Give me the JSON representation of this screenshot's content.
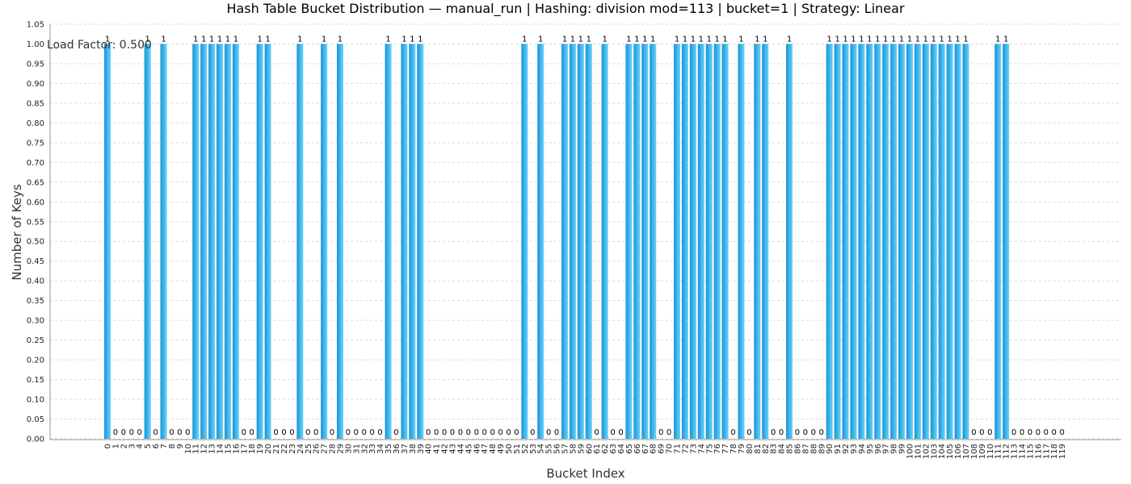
{
  "chart_data": {
    "type": "bar",
    "title": "Hash Table Bucket Distribution — manual_run | Hashing: division mod=113 | bucket=1 | Strategy: Linear",
    "xlabel": "Bucket Index",
    "ylabel": "Number of Keys",
    "annotation": "Load Factor: 0.500",
    "ylim": [
      0,
      1.05
    ],
    "yticks": [
      "0.00",
      "0.05",
      "0.10",
      "0.15",
      "0.20",
      "0.25",
      "0.30",
      "0.35",
      "0.40",
      "0.45",
      "0.50",
      "0.55",
      "0.60",
      "0.65",
      "0.70",
      "0.75",
      "0.80",
      "0.85",
      "0.90",
      "0.95",
      "1.00",
      "1.05"
    ],
    "grid": true,
    "categories": [
      "0",
      "1",
      "2",
      "3",
      "4",
      "5",
      "6",
      "7",
      "8",
      "9",
      "10",
      "11",
      "12",
      "13",
      "14",
      "15",
      "16",
      "17",
      "18",
      "19",
      "20",
      "21",
      "22",
      "23",
      "24",
      "25",
      "26",
      "27",
      "28",
      "29",
      "30",
      "31",
      "32",
      "33",
      "34",
      "35",
      "36",
      "37",
      "38",
      "39",
      "40",
      "41",
      "42",
      "43",
      "44",
      "45",
      "46",
      "47",
      "48",
      "49",
      "50",
      "51",
      "52",
      "53",
      "54",
      "55",
      "56",
      "57",
      "58",
      "59",
      "60",
      "61",
      "62",
      "63",
      "64",
      "65",
      "66",
      "67",
      "68",
      "69",
      "70",
      "71",
      "72",
      "73",
      "74",
      "75",
      "76",
      "77",
      "78",
      "79",
      "80",
      "81",
      "82",
      "83",
      "84",
      "85",
      "86",
      "87",
      "88",
      "89",
      "90",
      "91",
      "92",
      "93",
      "94",
      "95",
      "96",
      "97",
      "98",
      "99",
      "100",
      "101",
      "102",
      "103",
      "104",
      "105",
      "106",
      "107",
      "108",
      "109",
      "110",
      "111",
      "112",
      "113",
      "114",
      "115",
      "116",
      "117",
      "118",
      "119"
    ],
    "values": [
      1,
      0,
      0,
      0,
      0,
      1,
      0,
      1,
      0,
      0,
      0,
      1,
      1,
      1,
      1,
      1,
      1,
      0,
      0,
      1,
      1,
      0,
      0,
      0,
      1,
      0,
      0,
      1,
      0,
      1,
      0,
      0,
      0,
      0,
      0,
      1,
      0,
      1,
      1,
      1,
      0,
      0,
      0,
      0,
      0,
      0,
      0,
      0,
      0,
      0,
      0,
      0,
      1,
      0,
      1,
      0,
      0,
      1,
      1,
      1,
      1,
      0,
      1,
      0,
      0,
      1,
      1,
      1,
      1,
      0,
      0,
      1,
      1,
      1,
      1,
      1,
      1,
      1,
      0,
      1,
      0,
      1,
      1,
      0,
      0,
      1,
      0,
      0,
      0,
      0,
      1,
      1,
      1,
      1,
      1,
      1,
      1,
      1,
      1,
      1,
      1,
      1,
      1,
      1,
      1,
      1,
      1,
      1,
      0,
      0,
      0,
      1,
      1,
      0,
      0,
      0,
      0,
      0,
      0,
      0
    ],
    "colors": {
      "bar": "#36b4ea",
      "bar_light": "#6fd0f7",
      "bar_dark": "#1f8fd6"
    }
  }
}
